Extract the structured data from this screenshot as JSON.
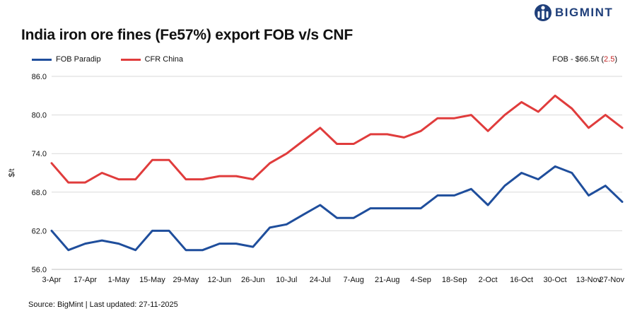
{
  "brand": {
    "name": "BIGMINT",
    "logo_icon": "bigmint-logo-icon",
    "color": "#1f3f7a"
  },
  "note": {
    "prefix": "FOB - $66.5/t (",
    "change": "2.5",
    "suffix": ")"
  },
  "source": "Source: BigMint | Last updated: 27-11-2025",
  "chart_data": {
    "type": "line",
    "title": "India iron ore fines (Fe57%) export FOB v/s CNF",
    "xlabel": "",
    "ylabel": "$/t",
    "ylim": [
      56,
      86
    ],
    "yticks": [
      "56.0",
      "62.0",
      "68.0",
      "74.0",
      "80.0",
      "86.0"
    ],
    "ytick_values": [
      56,
      62,
      68,
      74,
      80,
      86
    ],
    "grid": true,
    "legend_position": "top-left",
    "categories": [
      "3-Apr",
      "10-Apr",
      "17-Apr",
      "24-Apr",
      "1-May",
      "8-May",
      "15-May",
      "22-May",
      "29-May",
      "5-Jun",
      "12-Jun",
      "19-Jun",
      "26-Jun",
      "3-Jul",
      "10-Jul",
      "17-Jul",
      "24-Jul",
      "31-Jul",
      "7-Aug",
      "14-Aug",
      "21-Aug",
      "28-Aug",
      "4-Sep",
      "11-Sep",
      "18-Sep",
      "25-Sep",
      "2-Oct",
      "9-Oct",
      "16-Oct",
      "23-Oct",
      "30-Oct",
      "6-Nov",
      "13-Nov",
      "20-Nov",
      "27-Nov"
    ],
    "tick_labels": [
      "3-Apr",
      "17-Apr",
      "1-May",
      "15-May",
      "29-May",
      "12-Jun",
      "26-Jun",
      "10-Jul",
      "24-Jul",
      "7-Aug",
      "21-Aug",
      "4-Sep",
      "18-Sep",
      "2-Oct",
      "16-Oct",
      "30-Oct",
      "13-Nov",
      "27-Nov"
    ],
    "series": [
      {
        "name": "FOB Paradip",
        "color": "#1f4e9c",
        "values": [
          62,
          59,
          60,
          60.5,
          60,
          59,
          62,
          62,
          59,
          59,
          60,
          60,
          59.5,
          62.5,
          63,
          64.5,
          66,
          64,
          64,
          65.5,
          65.5,
          65.5,
          65.5,
          67.5,
          67.5,
          68.5,
          66,
          69,
          71,
          70,
          72,
          71,
          67.5,
          69,
          66.5
        ]
      },
      {
        "name": "CFR China",
        "color": "#e03c3c",
        "values": [
          72.5,
          69.5,
          69.5,
          71,
          70,
          70,
          73,
          73,
          70,
          70,
          70.5,
          70.5,
          70,
          72.5,
          74,
          76,
          78,
          75.5,
          75.5,
          77,
          77,
          76.5,
          77.5,
          79.5,
          79.5,
          80,
          77.5,
          80,
          82,
          80.5,
          83,
          81,
          78,
          80,
          78
        ]
      }
    ]
  }
}
